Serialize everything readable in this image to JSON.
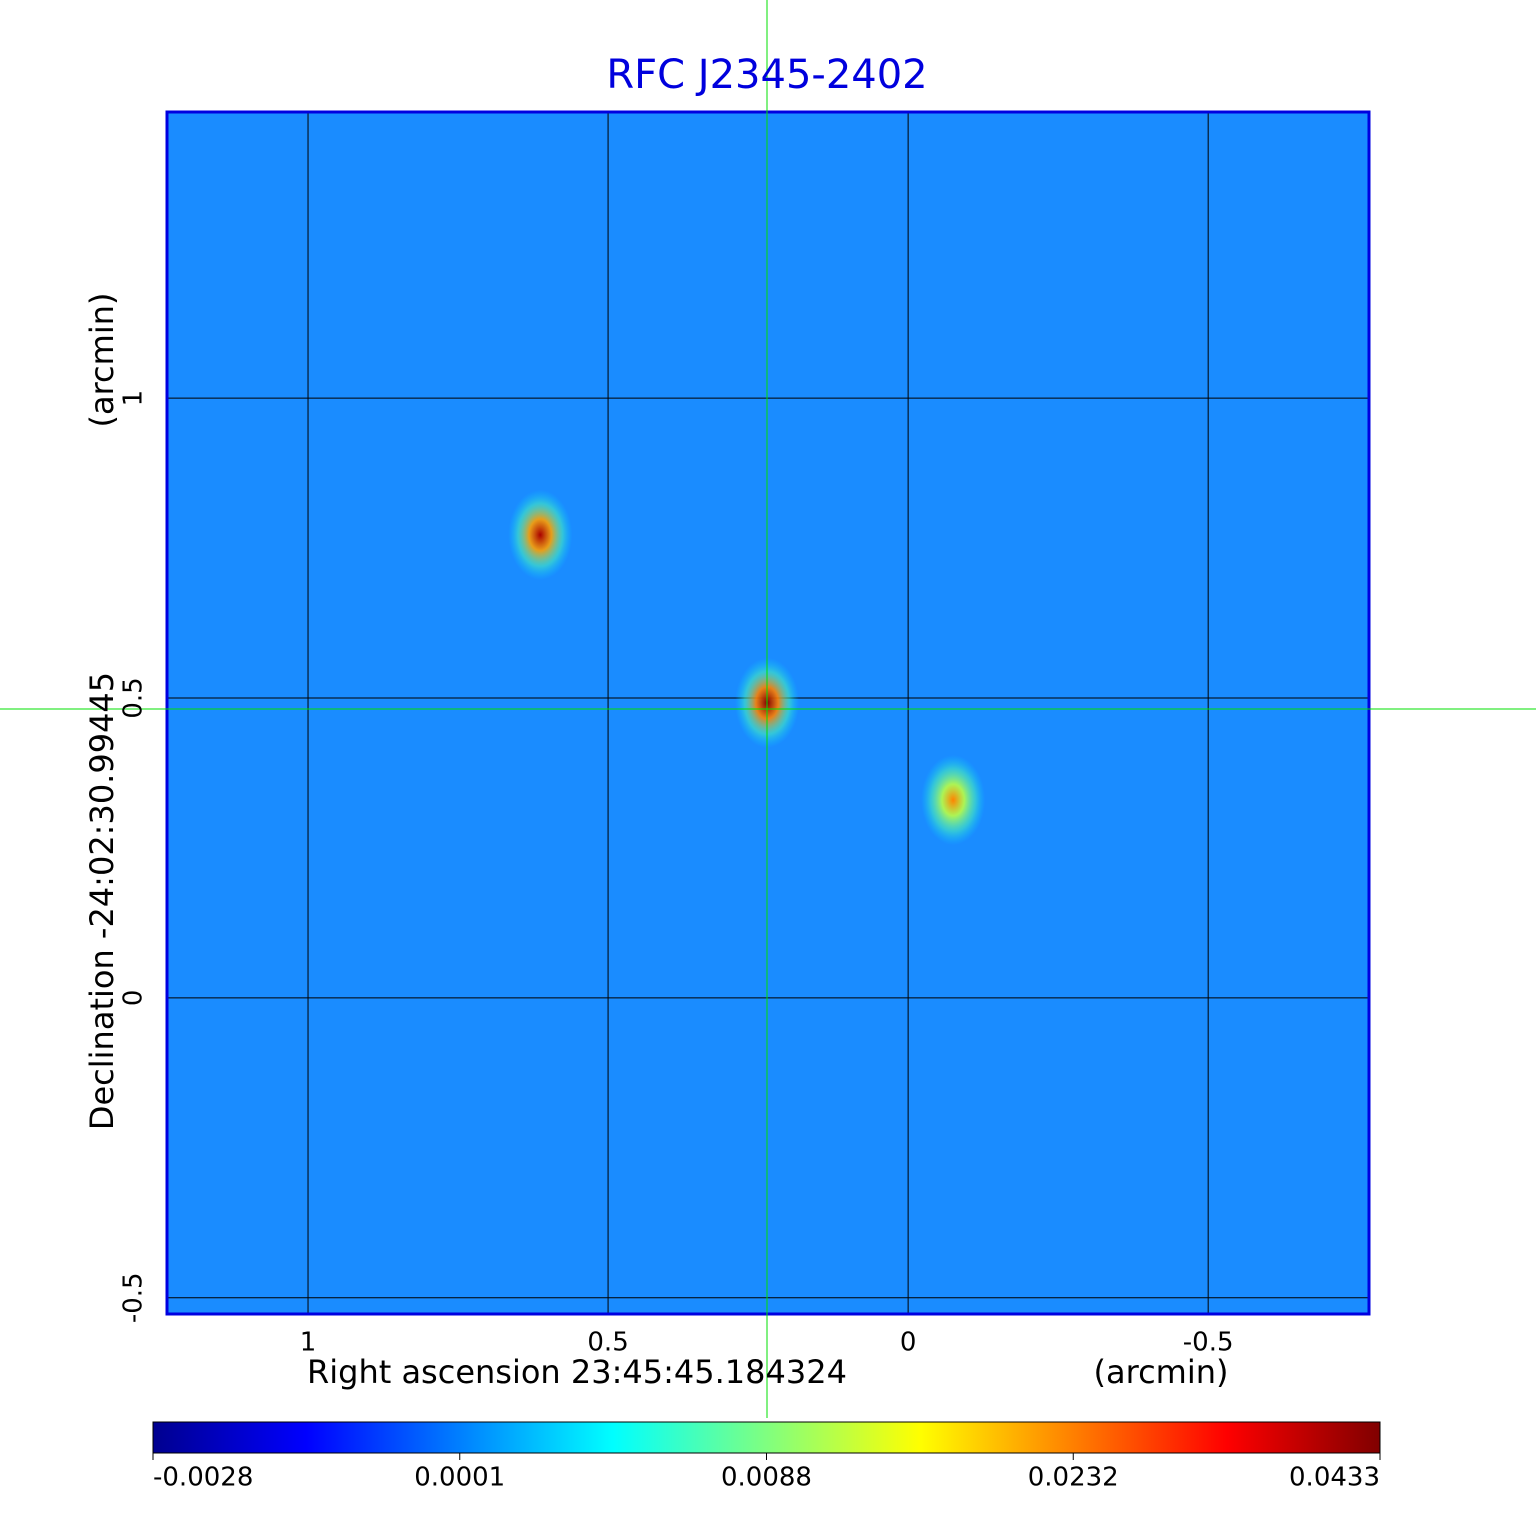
{
  "chart_data": {
    "type": "heatmap",
    "title": "RFC J2345-2402",
    "x_label": "Right ascension  23:45:45.184324",
    "x_unit": "(arcmin)",
    "y_label": "Declination  -24:02:30.99445",
    "y_unit": "(arcmin)",
    "xlim": [
      1.235,
      -0.768
    ],
    "ylim": [
      -0.527,
      1.477
    ],
    "xticks": [
      1.0,
      0.5,
      0.0,
      -0.5
    ],
    "yticks": [
      -0.5,
      0.0,
      0.5,
      1.0
    ],
    "grid": true,
    "x": [
      0.235,
      0.613,
      -0.075
    ],
    "y": [
      0.492,
      0.772,
      0.33
    ],
    "values": [
      0.0433,
      0.04,
      0.023
    ],
    "colorbar_ticks": [
      -0.0028,
      0.0001,
      0.0088,
      0.0232,
      0.0433
    ],
    "colormap": "jet"
  }
}
